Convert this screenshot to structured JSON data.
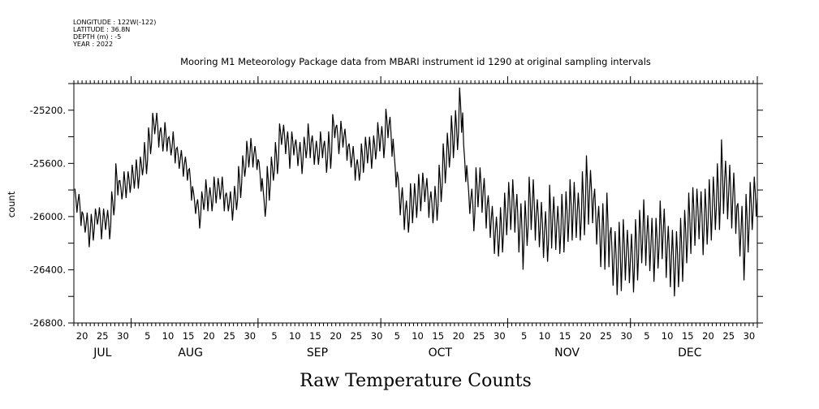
{
  "header": {
    "lines": [
      "LONGITUDE : 122W(-122)",
      "LATITUDE : 36.8N",
      "DEPTH (m) : -5",
      "YEAR : 2022"
    ]
  },
  "chart_data": {
    "type": "line",
    "title": "Mooring M1 Meteorology Package data from MBARI instrument id 1290 at original sampling intervals",
    "xlabel": "Raw Temperature Counts",
    "ylabel": "count",
    "ylim": [
      -26800,
      -25000
    ],
    "y_ticks": [
      -25200,
      -25600,
      -26000,
      -26400,
      -26800
    ],
    "y_tick_labels": [
      "-25200.",
      "-25600.",
      "-26000.",
      "-26400.",
      "-26800."
    ],
    "y_minor_step": 200,
    "x_unit": "days since Jul 1 2022 (Jul 1 = 0)",
    "xlim": [
      17,
      184
    ],
    "months": [
      {
        "name": "JUL",
        "start": 0,
        "days": [
          20,
          25,
          30
        ]
      },
      {
        "name": "AUG",
        "start": 31,
        "days": [
          5,
          10,
          15,
          20,
          25,
          30
        ]
      },
      {
        "name": "SEP",
        "start": 62,
        "days": [
          5,
          10,
          15,
          20,
          25,
          30
        ]
      },
      {
        "name": "OCT",
        "start": 92,
        "days": [
          5,
          10,
          15,
          20,
          25,
          30
        ]
      },
      {
        "name": "NOV",
        "start": 123,
        "days": [
          5,
          10,
          15,
          20,
          25,
          30
        ]
      },
      {
        "name": "DEC",
        "start": 153,
        "days": [
          5,
          10,
          15,
          20,
          25,
          30
        ]
      }
    ],
    "series": [
      {
        "name": "count",
        "first_day": 17,
        "daily_mean": [
          -25880,
          -25950,
          -26050,
          -26100,
          -26080,
          -26000,
          -26050,
          -26020,
          -26060,
          -25900,
          -25720,
          -25800,
          -25760,
          -25740,
          -25700,
          -25680,
          -25620,
          -25560,
          -25430,
          -25300,
          -25350,
          -25420,
          -25400,
          -25470,
          -25480,
          -25560,
          -25600,
          -25640,
          -25760,
          -25900,
          -25980,
          -25880,
          -25840,
          -25870,
          -25800,
          -25790,
          -25830,
          -25890,
          -25920,
          -25860,
          -25740,
          -25620,
          -25530,
          -25520,
          -25560,
          -25700,
          -25900,
          -25750,
          -25640,
          -25560,
          -25380,
          -25420,
          -25500,
          -25450,
          -25520,
          -25560,
          -25480,
          -25430,
          -25500,
          -25520,
          -25460,
          -25550,
          -25500,
          -25320,
          -25420,
          -25380,
          -25460,
          -25540,
          -25600,
          -25650,
          -25560,
          -25500,
          -25520,
          -25480,
          -25400,
          -25440,
          -25300,
          -25400,
          -25650,
          -25850,
          -25940,
          -26000,
          -25900,
          -25880,
          -25820,
          -25780,
          -25860,
          -25930,
          -25900,
          -25750,
          -25600,
          -25500,
          -25400,
          -25350,
          -25200,
          -25600,
          -25850,
          -25950,
          -25780,
          -25800,
          -25900,
          -26000,
          -26100,
          -26150,
          -26100,
          -25980,
          -25920,
          -25920,
          -26050,
          -26150,
          -26050,
          -25900,
          -25950,
          -26050,
          -26100,
          -26150,
          -26000,
          -26050,
          -26100,
          -26050,
          -26000,
          -25950,
          -25950,
          -26000,
          -25900,
          -25800,
          -25850,
          -26000,
          -26150,
          -26150,
          -26100,
          -26300,
          -26350,
          -26300,
          -26250,
          -26300,
          -26350,
          -26250,
          -26150,
          -26120,
          -26200,
          -26250,
          -26200,
          -26100,
          -26200,
          -26300,
          -26350,
          -26320,
          -26250,
          -26150,
          -26050,
          -26000,
          -25980,
          -26050,
          -26000,
          -25950,
          -25900,
          -25850,
          -25700,
          -25800,
          -25850,
          -25900,
          -26100,
          -26200,
          -26050,
          -25920,
          -25850
        ],
        "daily_half_range": [
          90,
          120,
          70,
          130,
          100,
          60,
          120,
          80,
          110,
          90,
          120,
          70,
          100,
          80,
          90,
          110,
          70,
          120,
          100,
          80,
          130,
          90,
          110,
          70,
          120,
          80,
          100,
          90,
          120,
          80,
          110,
          70,
          120,
          90,
          100,
          80,
          130,
          70,
          110,
          90,
          120,
          80,
          100,
          110,
          90,
          110,
          100,
          130,
          90,
          120,
          80,
          110,
          140,
          90,
          100,
          120,
          80,
          130,
          110,
          90,
          100,
          120,
          140,
          90,
          110,
          100,
          120,
          90,
          130,
          80,
          110,
          100,
          120,
          90,
          110,
          120,
          110,
          150,
          130,
          140,
          160,
          120,
          150,
          130,
          140,
          110,
          150,
          120,
          130,
          140,
          150,
          130,
          160,
          150,
          170,
          140,
          130,
          160,
          150,
          170,
          190,
          160,
          180,
          150,
          170,
          160,
          180,
          200,
          220,
          250,
          170,
          200,
          230,
          180,
          210,
          190,
          240,
          200,
          180,
          220,
          190,
          230,
          210,
          180,
          240,
          260,
          200,
          210,
          230,
          250,
          280,
          220,
          240,
          260,
          230,
          200,
          220,
          230,
          200,
          250,
          210,
          240,
          190,
          220,
          260,
          230,
          250,
          210,
          240,
          200,
          230,
          220,
          190,
          240,
          210,
          230,
          200,
          250,
          280,
          220,
          240,
          230,
          200,
          280,
          220,
          180,
          150
        ]
      }
    ]
  }
}
